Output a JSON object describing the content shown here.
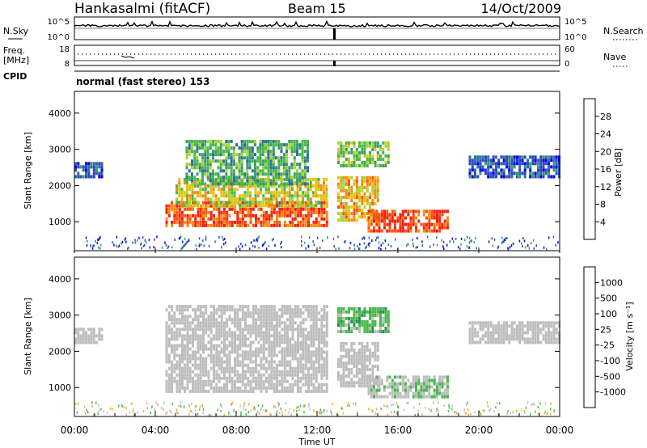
{
  "header": {
    "station": "Hankasalmi (fitACF)",
    "beam": "Beam 15",
    "date": "14/Oct/2009"
  },
  "sky_panel": {
    "left_label": "N.Sky",
    "right_label": "N.Search",
    "left_ticks": [
      "10^5",
      "10^0"
    ],
    "right_ticks": [
      "10^5",
      "10^0"
    ]
  },
  "freq_panel": {
    "left_label_1": "Freq.",
    "left_label_2": "[MHz]",
    "right_label": "Nave",
    "left_ticks": [
      "18",
      "8"
    ],
    "right_ticks": [
      "60",
      "0"
    ]
  },
  "cpid_label": "CPID",
  "mode_text": "normal (fast stereo) 153",
  "power_panel": {
    "ylabel": "Slant Range [km]",
    "colorbar_title": "Power [dB]",
    "colorbar_ticks": [
      "28",
      "24",
      "20",
      "16",
      "12",
      "8",
      "4"
    ],
    "colors": [
      "#0000ff",
      "#2a47c0",
      "#2e6e9e",
      "#3c9c6c",
      "#48b84a",
      "#a4d438",
      "#f4c010",
      "#f88a10",
      "#ff5010",
      "#f02010"
    ]
  },
  "velocity_panel": {
    "ylabel": "Slant Range [km]",
    "colorbar_title": "Velocity [m s⁻¹]",
    "colorbar_ticks": [
      "1000",
      "500",
      "100",
      "25",
      "-25",
      "-100",
      "-500",
      "-1000"
    ],
    "colors": [
      "#2040c0",
      "#2e6e9e",
      "#2e8a5a",
      "#48b84a",
      "#bdbdbd",
      "#bdbdbd",
      "#f4b010",
      "#f88a10",
      "#ff5a10",
      "#ff2010"
    ]
  },
  "xaxis": {
    "label": "Time UT",
    "ticks": [
      "00:00",
      "04:00",
      "08:00",
      "12:00",
      "16:00",
      "20:00",
      "00:00"
    ]
  },
  "chart_data": [
    {
      "type": "heatmap",
      "title": "Hankasalmi (fitACF) Beam 15 14/Oct/2009",
      "quantity": "Power [dB]",
      "xlabel": "Time UT",
      "ylabel": "Slant Range [km]",
      "x_range_hours": [
        0,
        24
      ],
      "yticks": [
        1000,
        2000,
        3000,
        4000
      ],
      "ylim": [
        200,
        4600
      ],
      "colorbar_range": [
        0,
        30
      ],
      "regions": [
        {
          "t_start": 0,
          "t_end": 1.3,
          "range_min": 2200,
          "range_max": 2600,
          "value": 6
        },
        {
          "t_start": 4.5,
          "t_end": 12.5,
          "range_min": 850,
          "range_max": 1500,
          "value": 26
        },
        {
          "t_start": 5,
          "t_end": 12.5,
          "range_min": 1400,
          "range_max": 2200,
          "value": 18
        },
        {
          "t_start": 5.5,
          "t_end": 11.5,
          "range_min": 2000,
          "range_max": 3200,
          "value": 12
        },
        {
          "t_start": 13,
          "t_end": 15,
          "range_min": 1000,
          "range_max": 2200,
          "value": 20
        },
        {
          "t_start": 14.5,
          "t_end": 18.5,
          "range_min": 700,
          "range_max": 1300,
          "value": 27
        },
        {
          "t_start": 13,
          "t_end": 15.5,
          "range_min": 2500,
          "range_max": 3200,
          "value": 14
        },
        {
          "t_start": 19.5,
          "t_end": 24,
          "range_min": 2200,
          "range_max": 2800,
          "value": 6
        }
      ]
    },
    {
      "type": "heatmap",
      "title": "Hankasalmi (fitACF) Beam 15 14/Oct/2009",
      "quantity": "Velocity [m s-1]",
      "xlabel": "Time UT",
      "ylabel": "Slant Range [km]",
      "x_range_hours": [
        0,
        24
      ],
      "yticks": [
        1000,
        2000,
        3000,
        4000
      ],
      "ylim": [
        200,
        4600
      ],
      "colorbar_range": [
        -1000,
        1000
      ],
      "regions": [
        {
          "t_start": 0,
          "t_end": 1.3,
          "range_min": 2200,
          "range_max": 2600,
          "value": 0
        },
        {
          "t_start": 4.5,
          "t_end": 12.5,
          "range_min": 850,
          "range_max": 3200,
          "value": 0
        },
        {
          "t_start": 13,
          "t_end": 15,
          "range_min": 1000,
          "range_max": 2200,
          "value": 0
        },
        {
          "t_start": 14.5,
          "t_end": 18.5,
          "range_min": 700,
          "range_max": 1300,
          "value": -150
        },
        {
          "t_start": 13,
          "t_end": 15.5,
          "range_min": 2500,
          "range_max": 3200,
          "value": -300
        },
        {
          "t_start": 19.5,
          "t_end": 24,
          "range_min": 2200,
          "range_max": 2800,
          "value": 0
        }
      ]
    }
  ]
}
